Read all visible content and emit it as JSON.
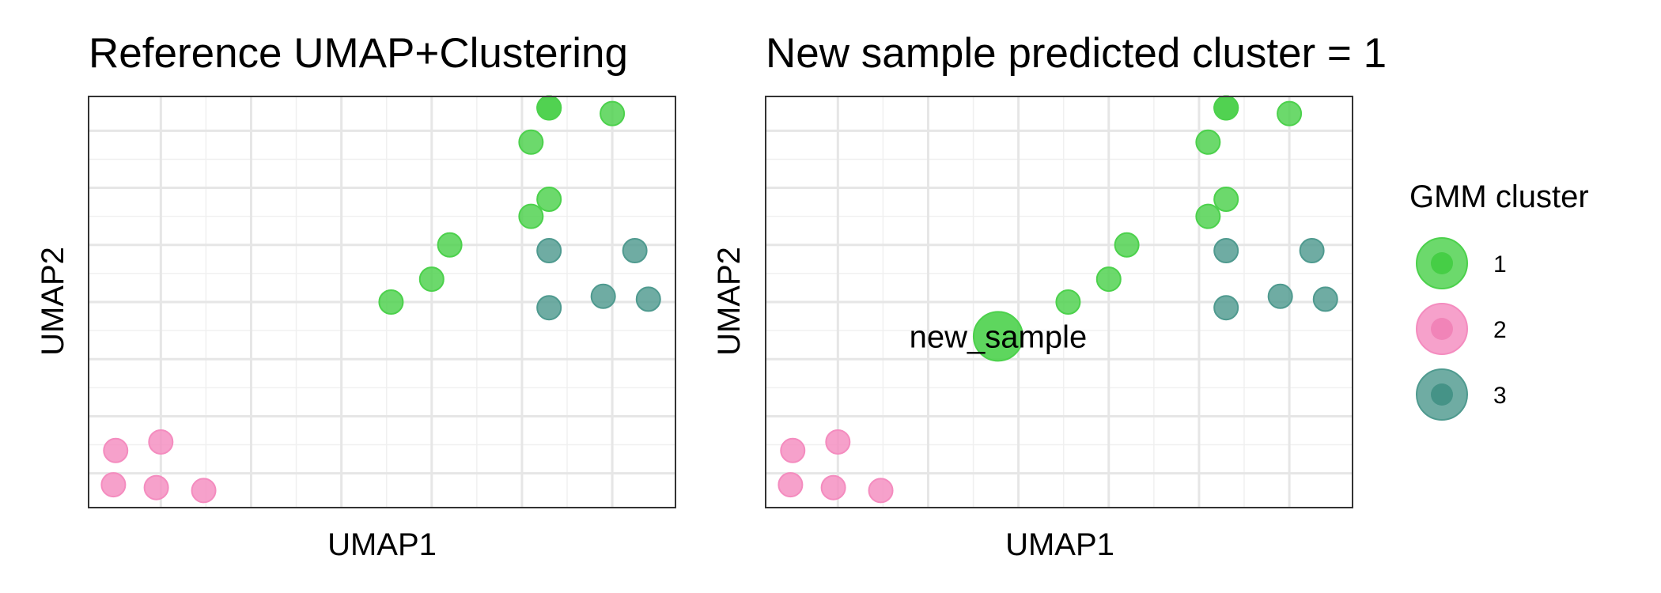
{
  "chart_data": [
    {
      "type": "scatter",
      "title": "Reference UMAP+Clustering",
      "xlabel": "UMAP1",
      "ylabel": "UMAP2",
      "xlim": [
        0,
        13
      ],
      "ylim": [
        0,
        7.2
      ],
      "x_gridlines": [
        1.6,
        3.6,
        5.6,
        7.6,
        9.6,
        11.6
      ],
      "y_gridlines": [
        0.6,
        1.6,
        2.6,
        3.6,
        4.6,
        5.6,
        6.6
      ],
      "grid": true,
      "series": [
        {
          "name": "1",
          "color": "#4cd14c",
          "x": [
            6.7,
            7.6,
            8.0,
            9.8,
            10.2,
            9.8,
            10.2,
            10.2,
            11.6
          ],
          "y": [
            3.6,
            4.0,
            4.6,
            5.1,
            5.4,
            6.4,
            7.0,
            7.0,
            6.9
          ]
        },
        {
          "name": "2",
          "color": "#f48cbf",
          "x": [
            0.6,
            1.6,
            0.55,
            1.5,
            2.55
          ],
          "y": [
            1.0,
            1.15,
            0.4,
            0.35,
            0.3
          ]
        },
        {
          "name": "3",
          "color": "#4f9a8f",
          "x": [
            10.2,
            12.1,
            10.2,
            11.4,
            12.4
          ],
          "y": [
            4.5,
            4.5,
            3.5,
            3.7,
            3.65
          ]
        }
      ]
    },
    {
      "type": "scatter",
      "title": "New sample predicted cluster = 1",
      "xlabel": "UMAP1",
      "ylabel": "UMAP2",
      "xlim": [
        0,
        13
      ],
      "ylim": [
        0,
        7.2
      ],
      "x_gridlines": [
        1.6,
        3.6,
        5.6,
        7.6,
        9.6,
        11.6
      ],
      "y_gridlines": [
        0.6,
        1.6,
        2.6,
        3.6,
        4.6,
        5.6,
        6.6
      ],
      "grid": true,
      "series": [
        {
          "name": "1",
          "color": "#4cd14c",
          "x": [
            6.7,
            7.6,
            8.0,
            9.8,
            10.2,
            9.8,
            10.2,
            10.2,
            11.6
          ],
          "y": [
            3.6,
            4.0,
            4.6,
            5.1,
            5.4,
            6.4,
            7.0,
            7.0,
            6.9
          ]
        },
        {
          "name": "2",
          "color": "#f48cbf",
          "x": [
            0.6,
            1.6,
            0.55,
            1.5,
            2.55
          ],
          "y": [
            1.0,
            1.15,
            0.4,
            0.35,
            0.3
          ]
        },
        {
          "name": "3",
          "color": "#4f9a8f",
          "x": [
            10.2,
            12.1,
            10.2,
            11.4,
            12.4
          ],
          "y": [
            4.5,
            4.5,
            3.5,
            3.7,
            3.65
          ]
        }
      ],
      "highlight": {
        "label": "new_sample",
        "x": 5.15,
        "y": 3.0,
        "cluster": "1",
        "color": "#4cd14c"
      }
    }
  ],
  "legend": {
    "title": "GMM cluster",
    "placement": "right",
    "items": [
      {
        "label": "1",
        "color": "#4cd14c",
        "inner": "#3fcb3f"
      },
      {
        "label": "2",
        "color": "#f48cbf",
        "inner": "#f07fb5"
      },
      {
        "label": "3",
        "color": "#4f9a8f",
        "inner": "#3e8e82"
      }
    ]
  }
}
